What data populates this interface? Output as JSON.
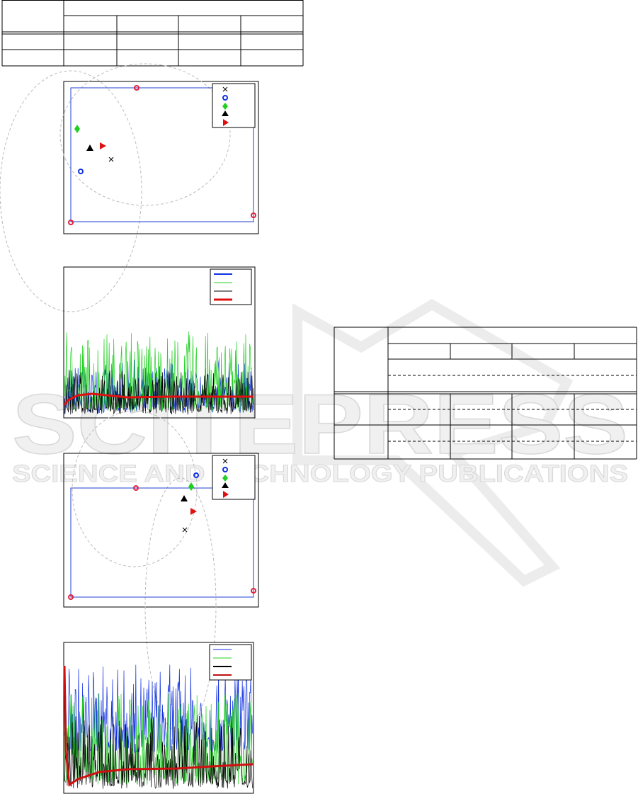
{
  "watermark": {
    "title": "SCITEPRESS",
    "subtitle": "SCIENCE AND TECHNOLOGY PUBLICATIONS"
  }
}
